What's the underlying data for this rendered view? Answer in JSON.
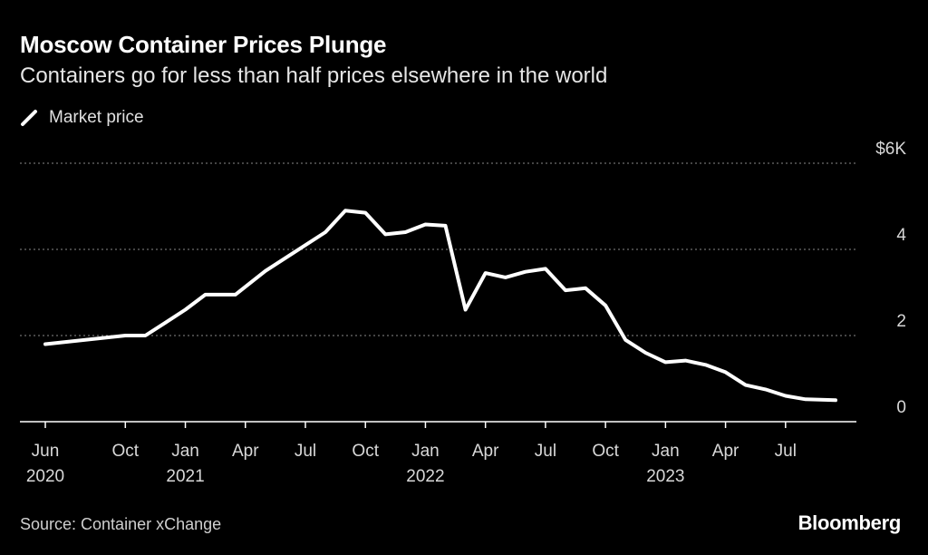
{
  "title": "Moscow Container Prices Plunge",
  "subtitle": "Containers go for less than half prices elsewhere in the world",
  "legend": {
    "label": "Market price",
    "icon": "line-swatch-icon"
  },
  "source": "Source: Container xChange",
  "brand": "Bloomberg",
  "colors": {
    "background": "#000000",
    "line": "#ffffff",
    "grid": "#8a8a8a",
    "axis": "#ffffff",
    "text": "#d8d8d8"
  },
  "chart_data": {
    "type": "line",
    "title": "Moscow Container Prices Plunge",
    "subtitle": "Containers go for less than half prices elsewhere in the world",
    "xlabel": "",
    "ylabel": "",
    "ylim": [
      0,
      6
    ],
    "y_ticks": [
      {
        "value": 6,
        "label": "$6K"
      },
      {
        "value": 4,
        "label": "4"
      },
      {
        "value": 2,
        "label": "2"
      },
      {
        "value": 0,
        "label": "0"
      }
    ],
    "x_ticks": [
      {
        "month": 0,
        "label": "Jun",
        "year": "2020"
      },
      {
        "month": 4,
        "label": "Oct",
        "year": ""
      },
      {
        "month": 7,
        "label": "Jan",
        "year": "2021"
      },
      {
        "month": 10,
        "label": "Apr",
        "year": ""
      },
      {
        "month": 13,
        "label": "Jul",
        "year": ""
      },
      {
        "month": 16,
        "label": "Oct",
        "year": ""
      },
      {
        "month": 19,
        "label": "Jan",
        "year": "2022"
      },
      {
        "month": 22,
        "label": "Apr",
        "year": ""
      },
      {
        "month": 25,
        "label": "Jul",
        "year": ""
      },
      {
        "month": 28,
        "label": "Oct",
        "year": ""
      },
      {
        "month": 31,
        "label": "Jan",
        "year": "2023"
      },
      {
        "month": 34,
        "label": "Apr",
        "year": ""
      },
      {
        "month": 37,
        "label": "Jul",
        "year": ""
      }
    ],
    "x_range": [
      0,
      40.5
    ],
    "grid": true,
    "legend_position": "top-left",
    "series": [
      {
        "name": "Market price",
        "unit": "USD thousands",
        "points": [
          [
            0,
            1.8
          ],
          [
            4,
            2.0
          ],
          [
            5,
            2.0
          ],
          [
            6,
            2.3
          ],
          [
            7,
            2.6
          ],
          [
            8,
            2.95
          ],
          [
            9.5,
            2.95
          ],
          [
            11,
            3.5
          ],
          [
            12.5,
            3.95
          ],
          [
            14,
            4.4
          ],
          [
            15,
            4.9
          ],
          [
            16,
            4.85
          ],
          [
            17,
            4.35
          ],
          [
            18,
            4.4
          ],
          [
            19,
            4.58
          ],
          [
            20,
            4.55
          ],
          [
            21,
            2.6
          ],
          [
            22,
            3.45
          ],
          [
            23,
            3.35
          ],
          [
            24,
            3.48
          ],
          [
            25,
            3.55
          ],
          [
            26,
            3.05
          ],
          [
            27,
            3.1
          ],
          [
            28,
            2.7
          ],
          [
            29,
            1.9
          ],
          [
            30,
            1.6
          ],
          [
            31,
            1.38
          ],
          [
            32,
            1.42
          ],
          [
            33,
            1.32
          ],
          [
            34,
            1.15
          ],
          [
            35,
            0.85
          ],
          [
            36,
            0.75
          ],
          [
            37,
            0.6
          ],
          [
            38,
            0.52
          ],
          [
            39.5,
            0.5
          ]
        ]
      }
    ]
  }
}
